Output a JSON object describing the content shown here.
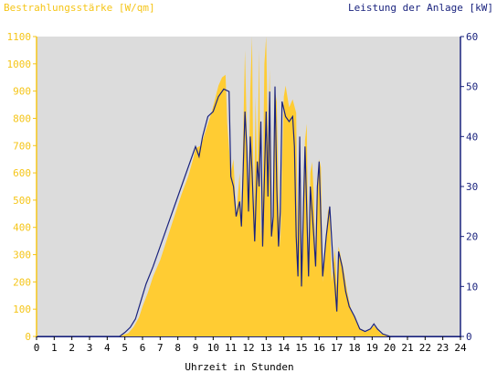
{
  "chart_data": {
    "type": "area",
    "left_axis_label": "Bestrahlungsstärke [W/qm]",
    "right_axis_label": "Leistung der Anlage [kW]",
    "xlabel": "Uhrzeit in Stunden",
    "xlim": [
      0,
      24
    ],
    "ylim_left": [
      0,
      1100
    ],
    "ylim_right": [
      0,
      60
    ],
    "x_ticks": [
      "0",
      "1",
      "2",
      "3",
      "4",
      "5",
      "6",
      "7",
      "8",
      "9",
      "10",
      "11",
      "12",
      "13",
      "14",
      "15",
      "16",
      "17",
      "18",
      "19",
      "20",
      "21",
      "22",
      "23",
      "24"
    ],
    "y_left_ticks": [
      "0",
      "100",
      "200",
      "300",
      "400",
      "500",
      "600",
      "700",
      "800",
      "900",
      "1000",
      "1100"
    ],
    "y_right_ticks": [
      "0",
      "10",
      "20",
      "30",
      "40",
      "50",
      "60"
    ],
    "colors": {
      "irradiance": "#ffcc33",
      "power": "#1a237e",
      "plot_bg": "#dcdcdc",
      "left_axis": "#f5c518",
      "right_axis": "#1a237e"
    },
    "series": [
      {
        "unit": "W/qm",
        "axis": "left",
        "points": [
          [
            0,
            0
          ],
          [
            4.6,
            0
          ],
          [
            4.9,
            5
          ],
          [
            5.2,
            12
          ],
          [
            5.5,
            35
          ],
          [
            5.8,
            70
          ],
          [
            6.0,
            110
          ],
          [
            6.3,
            160
          ],
          [
            6.6,
            220
          ],
          [
            7.0,
            280
          ],
          [
            7.4,
            360
          ],
          [
            7.8,
            440
          ],
          [
            8.2,
            520
          ],
          [
            8.6,
            590
          ],
          [
            8.9,
            660
          ],
          [
            9.0,
            690
          ],
          [
            9.3,
            700
          ],
          [
            9.6,
            760
          ],
          [
            9.9,
            820
          ],
          [
            10.1,
            870
          ],
          [
            10.3,
            920
          ],
          [
            10.5,
            950
          ],
          [
            10.7,
            960
          ],
          [
            10.8,
            780
          ],
          [
            11.0,
            600
          ],
          [
            11.15,
            650
          ],
          [
            11.3,
            440
          ],
          [
            11.5,
            600
          ],
          [
            11.6,
            420
          ],
          [
            11.8,
            1050
          ],
          [
            11.9,
            760
          ],
          [
            12.0,
            520
          ],
          [
            12.1,
            900
          ],
          [
            12.2,
            1100
          ],
          [
            12.3,
            400
          ],
          [
            12.4,
            880
          ],
          [
            12.5,
            560
          ],
          [
            12.6,
            1050
          ],
          [
            12.7,
            350
          ],
          [
            12.8,
            480
          ],
          [
            12.9,
            1000
          ],
          [
            13.0,
            1100
          ],
          [
            13.1,
            700
          ],
          [
            13.2,
            980
          ],
          [
            13.3,
            350
          ],
          [
            13.4,
            460
          ],
          [
            13.5,
            900
          ],
          [
            13.6,
            860
          ],
          [
            13.7,
            500
          ],
          [
            13.8,
            330
          ],
          [
            13.9,
            620
          ],
          [
            14.0,
            880
          ],
          [
            14.1,
            920
          ],
          [
            14.3,
            840
          ],
          [
            14.5,
            870
          ],
          [
            14.7,
            820
          ],
          [
            14.8,
            300
          ],
          [
            14.9,
            560
          ],
          [
            15.0,
            180
          ],
          [
            15.1,
            500
          ],
          [
            15.2,
            720
          ],
          [
            15.3,
            780
          ],
          [
            15.4,
            220
          ],
          [
            15.5,
            600
          ],
          [
            15.6,
            640
          ],
          [
            15.7,
            520
          ],
          [
            15.8,
            250
          ],
          [
            15.9,
            500
          ],
          [
            16.0,
            650
          ],
          [
            16.1,
            620
          ],
          [
            16.2,
            200
          ],
          [
            16.3,
            300
          ],
          [
            16.5,
            460
          ],
          [
            16.6,
            480
          ],
          [
            16.7,
            200
          ],
          [
            16.8,
            250
          ],
          [
            16.9,
            320
          ],
          [
            17.0,
            180
          ],
          [
            17.1,
            330
          ],
          [
            17.2,
            300
          ],
          [
            17.4,
            240
          ],
          [
            17.6,
            160
          ],
          [
            17.8,
            100
          ],
          [
            18.0,
            70
          ],
          [
            18.3,
            30
          ],
          [
            18.6,
            15
          ],
          [
            18.9,
            25
          ],
          [
            19.1,
            40
          ],
          [
            19.3,
            25
          ],
          [
            19.5,
            10
          ],
          [
            19.8,
            4
          ],
          [
            20.1,
            0
          ],
          [
            24,
            0
          ]
        ]
      },
      {
        "unit": "kW",
        "axis": "right",
        "points": [
          [
            0,
            0
          ],
          [
            4.7,
            0
          ],
          [
            5.0,
            0.8
          ],
          [
            5.3,
            1.8
          ],
          [
            5.6,
            3.5
          ],
          [
            5.9,
            7
          ],
          [
            6.2,
            10.5
          ],
          [
            6.6,
            14
          ],
          [
            7.0,
            18
          ],
          [
            7.4,
            22
          ],
          [
            7.8,
            26
          ],
          [
            8.2,
            30
          ],
          [
            8.6,
            34
          ],
          [
            9.0,
            38
          ],
          [
            9.2,
            36
          ],
          [
            9.4,
            40
          ],
          [
            9.7,
            44
          ],
          [
            10.0,
            45
          ],
          [
            10.3,
            48
          ],
          [
            10.6,
            49.5
          ],
          [
            10.9,
            49
          ],
          [
            11.0,
            32
          ],
          [
            11.15,
            30
          ],
          [
            11.3,
            24
          ],
          [
            11.5,
            27
          ],
          [
            11.6,
            22
          ],
          [
            11.8,
            45
          ],
          [
            11.9,
            38
          ],
          [
            12.0,
            25
          ],
          [
            12.1,
            40
          ],
          [
            12.2,
            33
          ],
          [
            12.35,
            19
          ],
          [
            12.5,
            35
          ],
          [
            12.6,
            30
          ],
          [
            12.7,
            43
          ],
          [
            12.8,
            18
          ],
          [
            13.0,
            45
          ],
          [
            13.1,
            28
          ],
          [
            13.2,
            49
          ],
          [
            13.3,
            20
          ],
          [
            13.4,
            24
          ],
          [
            13.5,
            50
          ],
          [
            13.6,
            30
          ],
          [
            13.7,
            18
          ],
          [
            13.8,
            25
          ],
          [
            13.9,
            47
          ],
          [
            14.1,
            44
          ],
          [
            14.3,
            43
          ],
          [
            14.5,
            44
          ],
          [
            14.6,
            38
          ],
          [
            14.7,
            20
          ],
          [
            14.8,
            12
          ],
          [
            14.9,
            40
          ],
          [
            15.0,
            10
          ],
          [
            15.1,
            24
          ],
          [
            15.2,
            38
          ],
          [
            15.4,
            12
          ],
          [
            15.5,
            30
          ],
          [
            15.7,
            20
          ],
          [
            15.8,
            14
          ],
          [
            15.9,
            30
          ],
          [
            16.0,
            35
          ],
          [
            16.2,
            12
          ],
          [
            16.4,
            20
          ],
          [
            16.6,
            26
          ],
          [
            16.8,
            14
          ],
          [
            16.9,
            10
          ],
          [
            17.0,
            5
          ],
          [
            17.1,
            17
          ],
          [
            17.3,
            14
          ],
          [
            17.5,
            9
          ],
          [
            17.7,
            6
          ],
          [
            18.0,
            4
          ],
          [
            18.3,
            1.5
          ],
          [
            18.6,
            1
          ],
          [
            18.9,
            1.5
          ],
          [
            19.1,
            2.5
          ],
          [
            19.3,
            1.5
          ],
          [
            19.6,
            0.5
          ],
          [
            20.0,
            0
          ],
          [
            24,
            0
          ]
        ]
      }
    ],
    "grid": false
  }
}
